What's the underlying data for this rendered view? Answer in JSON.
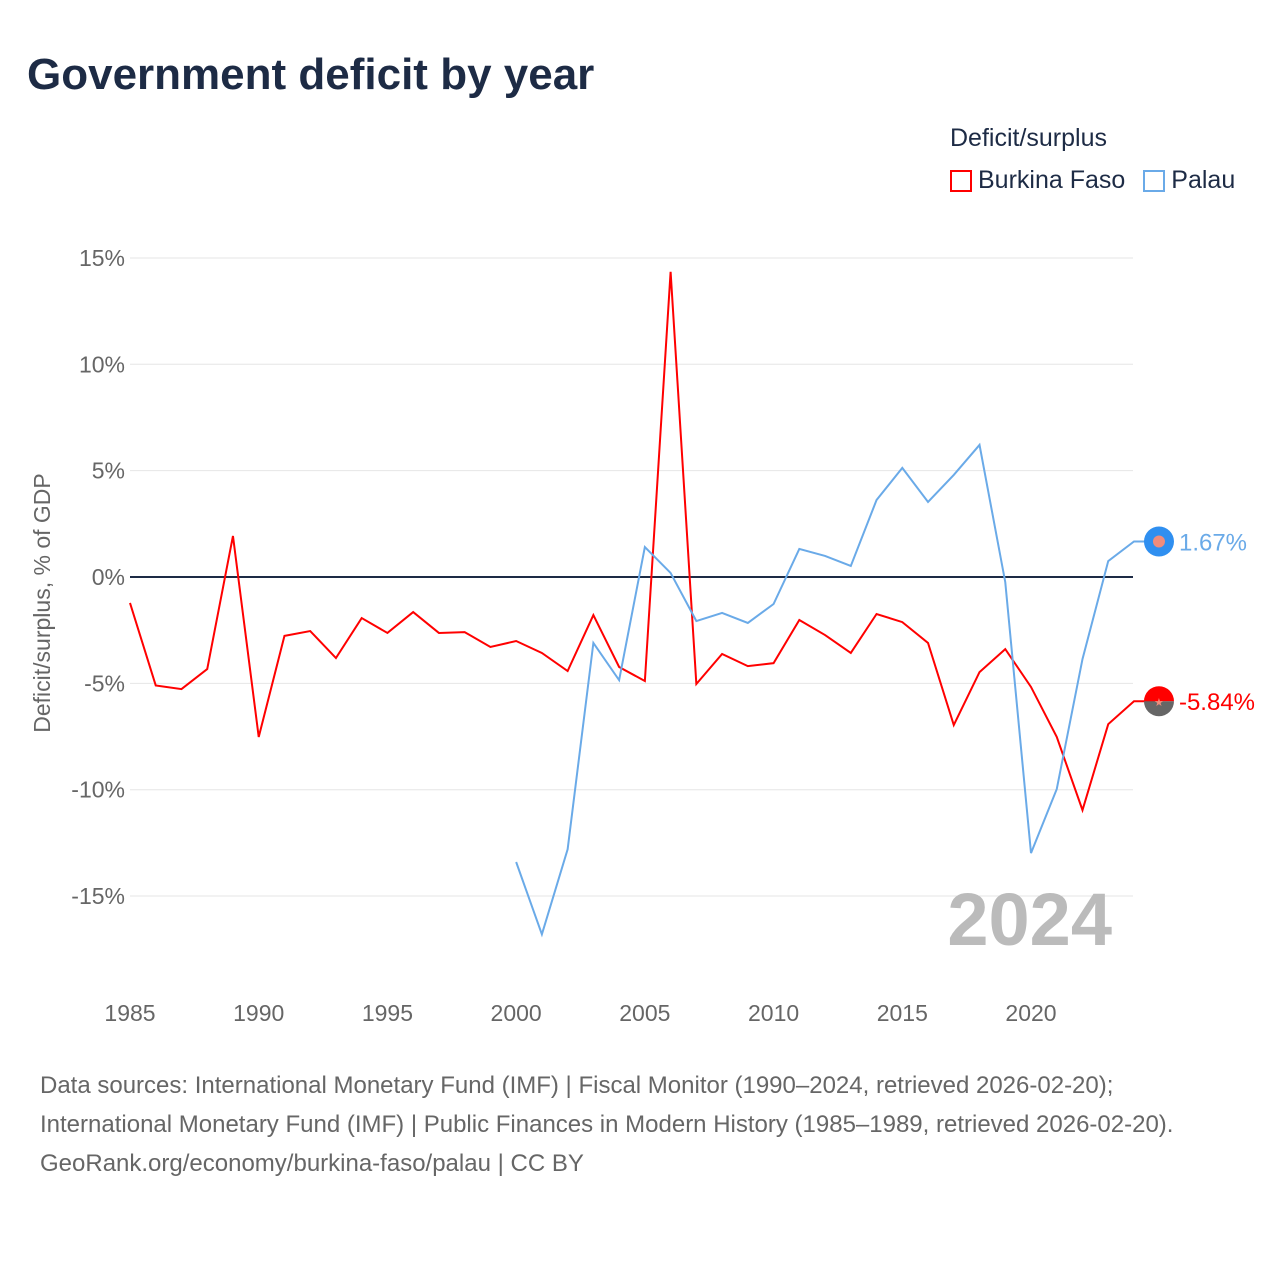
{
  "chart_data": {
    "type": "line",
    "title": "Government deficit by year",
    "ylabel": "Deficit/surplus, % of GDP",
    "xlabel": "",
    "legend_title": "Deficit/surplus",
    "legend_placement": "top-right",
    "xlim": [
      1985,
      2024
    ],
    "ylim": [
      -18,
      16
    ],
    "xticks": [
      1985,
      1990,
      1995,
      2000,
      2005,
      2010,
      2015,
      2020
    ],
    "xtick_labels": [
      "1985",
      "1990",
      "1995",
      "2000",
      "2005",
      "2010",
      "2015",
      "2020"
    ],
    "yticks": [
      15,
      10,
      5,
      0,
      -5,
      -10,
      -15
    ],
    "ytick_labels": [
      "15%",
      "10%",
      "5%",
      "0%",
      "-5%",
      "-10%",
      "-15%"
    ],
    "year_label": "2024",
    "series": [
      {
        "name": "Burkina Faso",
        "color": "#ff0000",
        "end_label": "-5.84%",
        "x": [
          1985,
          1986,
          1987,
          1988,
          1989,
          1990,
          1991,
          1992,
          1993,
          1994,
          1995,
          1996,
          1997,
          1998,
          1999,
          2000,
          2001,
          2002,
          2003,
          2004,
          2005,
          2006,
          2007,
          2008,
          2009,
          2010,
          2011,
          2012,
          2013,
          2014,
          2015,
          2016,
          2017,
          2018,
          2019,
          2020,
          2021,
          2022,
          2023,
          2024
        ],
        "values": [
          -1.22,
          -5.1,
          -5.27,
          -4.33,
          1.93,
          -7.52,
          -2.77,
          -2.54,
          -3.81,
          -1.93,
          -2.63,
          -1.65,
          -2.63,
          -2.59,
          -3.29,
          -3.01,
          -3.57,
          -4.42,
          -1.79,
          -4.23,
          -4.89,
          14.35,
          -5.03,
          -3.62,
          -4.19,
          -4.05,
          -2.02,
          -2.73,
          -3.57,
          -1.74,
          -2.12,
          -3.1,
          -6.96,
          -4.47,
          -3.39,
          -5.17,
          -7.52,
          -10.96,
          -6.92,
          -5.84
        ]
      },
      {
        "name": "Palau",
        "color": "#6aaae8",
        "end_label": "1.67%",
        "x": [
          2000,
          2001,
          2002,
          2003,
          2004,
          2005,
          2006,
          2007,
          2008,
          2009,
          2010,
          2011,
          2012,
          2013,
          2014,
          2015,
          2016,
          2017,
          2018,
          2019,
          2020,
          2021,
          2022,
          2023,
          2024
        ],
        "values": [
          -13.4,
          -16.8,
          -12.8,
          -3.1,
          -4.85,
          1.41,
          0.19,
          -2.07,
          -1.69,
          -2.16,
          -1.27,
          1.32,
          0.99,
          0.52,
          3.62,
          5.13,
          3.53,
          4.8,
          6.21,
          -0.24,
          -12.98,
          -9.97,
          -3.86,
          0.75,
          1.67
        ]
      }
    ]
  },
  "footer": {
    "sources": "Data sources: International Monetary Fund (IMF) | Fiscal Monitor (1990–2024, retrieved 2026-02-20); International Monetary Fund (IMF) | Public Finances in Modern History (1985–1989, retrieved 2026-02-20).",
    "credit": "GeoRank.org/economy/burkina-faso/palau | CC BY"
  }
}
